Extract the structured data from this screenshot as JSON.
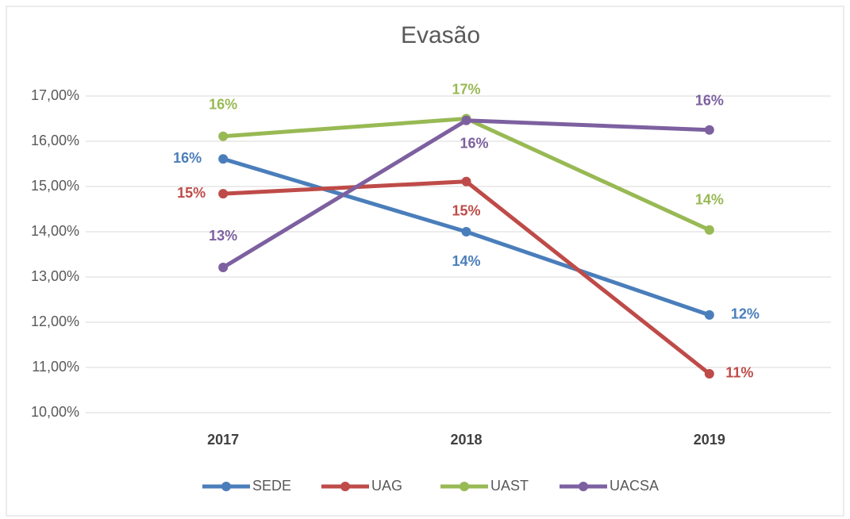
{
  "chart_data": {
    "type": "line",
    "title": "Evasão",
    "categories": [
      "2017",
      "2018",
      "2019"
    ],
    "series": [
      {
        "name": "SEDE",
        "color": "#4a7ebb",
        "values": [
          15.61,
          14.0,
          12.16
        ],
        "value_labels": [
          "16%",
          "14%",
          "12%"
        ]
      },
      {
        "name": "UAG",
        "color": "#be4b48",
        "values": [
          14.84,
          15.11,
          10.86
        ],
        "value_labels": [
          "15%",
          "15%",
          "11%"
        ]
      },
      {
        "name": "UAST",
        "color": "#98b954",
        "values": [
          16.11,
          16.5,
          14.04
        ],
        "value_labels": [
          "16%",
          "17%",
          "14%"
        ]
      },
      {
        "name": "UACSA",
        "color": "#7d60a0",
        "values": [
          13.21,
          16.46,
          16.25
        ],
        "value_labels": [
          "13%",
          "16%",
          "16%"
        ]
      }
    ],
    "ylim": [
      10,
      17
    ],
    "yticks": [
      {
        "value": 10,
        "label": "10,00%"
      },
      {
        "value": 11,
        "label": "11,00%"
      },
      {
        "value": 12,
        "label": "12,00%"
      },
      {
        "value": 13,
        "label": "13,00%"
      },
      {
        "value": 14,
        "label": "14,00%"
      },
      {
        "value": 15,
        "label": "15,00%"
      },
      {
        "value": 16,
        "label": "16,00%"
      },
      {
        "value": 17,
        "label": "17,00%"
      }
    ],
    "grid": true,
    "legend": "bottom"
  }
}
